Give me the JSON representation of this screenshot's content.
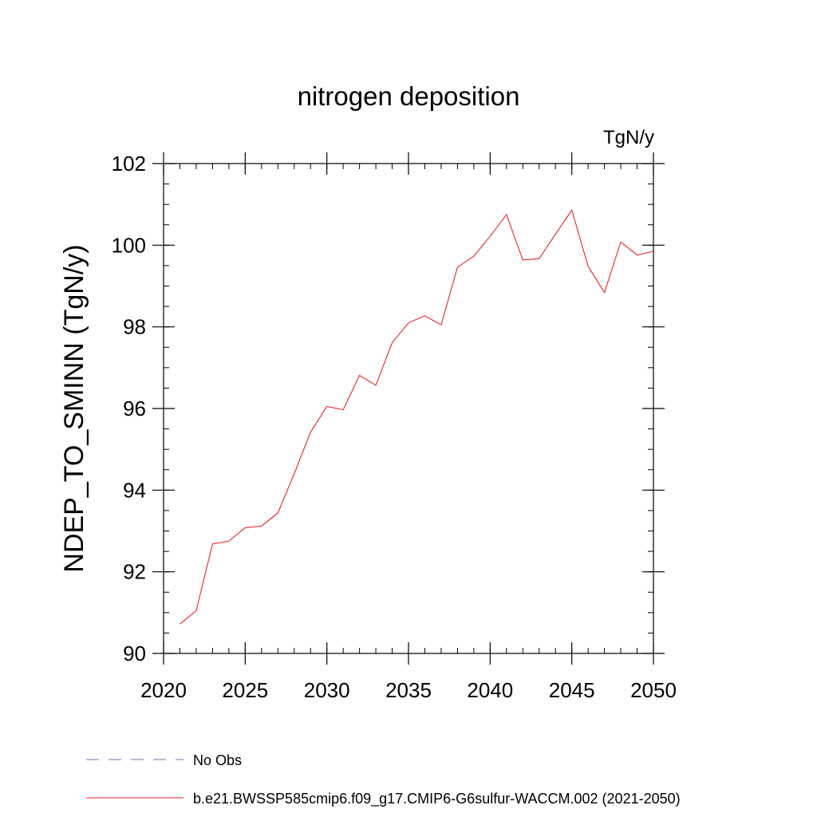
{
  "chart_data": {
    "type": "line",
    "title": "nitrogen deposition",
    "units_label": "TgN/y",
    "ylabel": "NDEP_TO_SMINN  (TgN/y)",
    "xlabel": "",
    "xlim": [
      2020,
      2050
    ],
    "ylim": [
      90,
      102
    ],
    "x_ticks": [
      2020,
      2025,
      2030,
      2035,
      2040,
      2045,
      2050
    ],
    "y_ticks": [
      90,
      92,
      94,
      96,
      98,
      100,
      102
    ],
    "x_minor_step": 1,
    "y_minor_step": 0.5,
    "grid": false,
    "legend_position": "bottom",
    "legend": [
      {
        "label": "No Obs",
        "color": "#7b6fb0",
        "style": "dashed"
      },
      {
        "label": "b.e21.BWSSP585cmip6.f09_g17.CMIP6-G6sulfur-WACCM.002 (2021-2050)",
        "color": "#e8242c",
        "style": "solid"
      }
    ],
    "series": [
      {
        "color": "#e8242c",
        "x": [
          2021,
          2022,
          2023,
          2024,
          2025,
          2026,
          2027,
          2028,
          2029,
          2030,
          2031,
          2032,
          2033,
          2034,
          2035,
          2036,
          2037,
          2038,
          2039,
          2040,
          2041,
          2042,
          2043,
          2044,
          2045,
          2046,
          2047,
          2048,
          2049,
          2050
        ],
        "values": [
          90.72,
          91.05,
          92.68,
          92.75,
          93.08,
          93.12,
          93.44,
          94.4,
          95.42,
          96.05,
          95.97,
          96.81,
          96.57,
          97.61,
          98.1,
          98.27,
          98.05,
          99.46,
          99.73,
          100.22,
          100.75,
          99.64,
          99.67,
          100.27,
          100.86,
          99.48,
          98.84,
          100.08,
          99.76,
          99.85
        ]
      }
    ]
  }
}
